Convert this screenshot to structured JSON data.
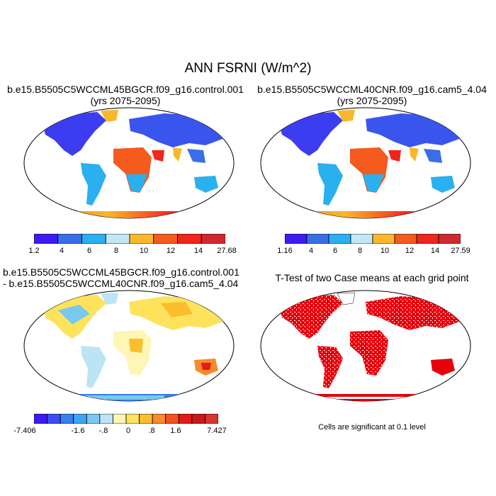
{
  "main_title": "ANN FSRNI (W/m^2)",
  "panels": [
    {
      "title": "b.e15.B5505C5WCCML45BGCR.f09_g16.control.001",
      "subtitle": "(yrs 2075-2095)",
      "colorbar": {
        "labels": [
          "1.2",
          "4",
          "6",
          "8",
          "10",
          "12",
          "14",
          "27.68"
        ],
        "colors": [
          "#3c1cf2",
          "#3a6de8",
          "#2ab0ee",
          "#c4e6f6",
          "#f9b82b",
          "#f55a1e",
          "#f0251b",
          "#d02a2f"
        ]
      }
    },
    {
      "title": "b.e15.B5505C5WCCML40CNR.f09_g16.cam5_4.04",
      "subtitle": "(yrs 2075-2095)",
      "colorbar": {
        "labels": [
          "1.16",
          "4",
          "6",
          "8",
          "10",
          "12",
          "14",
          "27.59"
        ],
        "colors": [
          "#3c1cf2",
          "#3a6de8",
          "#2ab0ee",
          "#c4e6f6",
          "#f9b82b",
          "#f55a1e",
          "#f0251b",
          "#d02a2f"
        ]
      }
    },
    {
      "title": "b.e15.B5505C5WCCML45BGCR.f09_g16.control.001",
      "subtitle": "- b.e15.B5505C5WCCML40CNR.f09_g16.cam5_4.04",
      "colorbar": {
        "labels": [
          "-7.406",
          "-1.6",
          "-.8",
          "0",
          ".8",
          "1.6",
          "7.427"
        ],
        "colors": [
          "#3c1cf2",
          "#3a4ff0",
          "#3a7eeb",
          "#3ea6f0",
          "#78c8f2",
          "#bde4f4",
          "#fdf6b4",
          "#fde35c",
          "#fbbe2c",
          "#f78a2a",
          "#f2521f",
          "#e21b1b",
          "#c71a1a",
          "#d5372f"
        ]
      }
    },
    {
      "title": "T-Test of two Case means at each grid point",
      "note": "Cells are significant at 0.1 level"
    }
  ]
}
